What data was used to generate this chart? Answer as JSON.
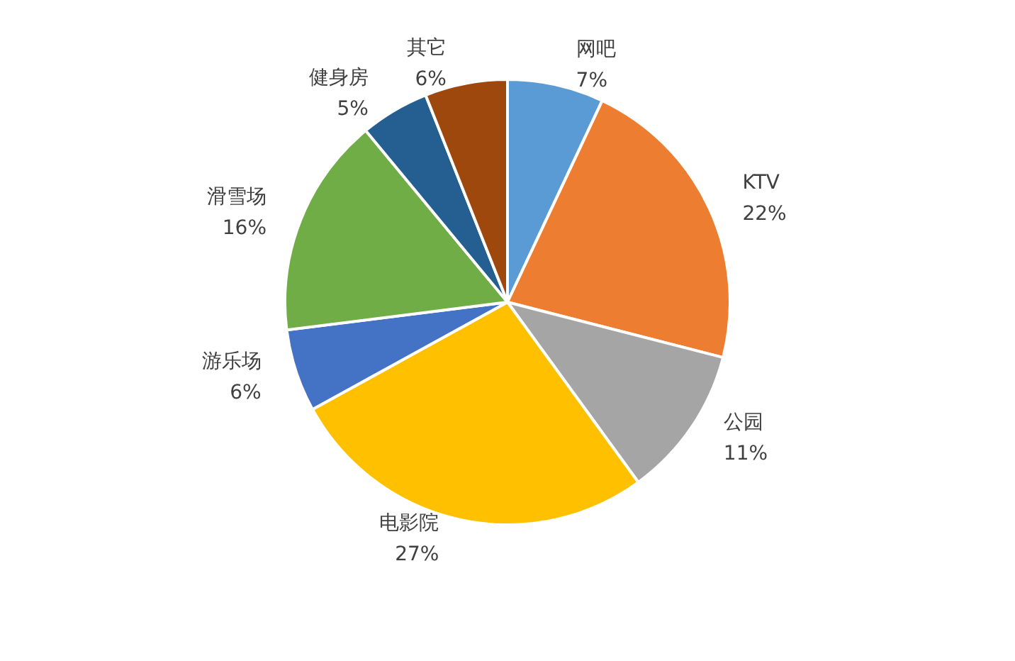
{
  "chart_data": {
    "type": "pie",
    "categories": [
      "网吧",
      "KTV",
      "公园",
      "电影院",
      "游乐场",
      "滑雪场",
      "健身房",
      "其它"
    ],
    "values": [
      7,
      22,
      11,
      27,
      6,
      16,
      5,
      6
    ],
    "value_labels": [
      "7%",
      "22%",
      "11%",
      "27%",
      "6%",
      "16%",
      "5%",
      "6%"
    ],
    "colors": [
      "#5b9bd5",
      "#ed7d31",
      "#a5a5a5",
      "#ffc000",
      "#4472c4",
      "#70ad47",
      "#255e91",
      "#9e480e"
    ],
    "legend": false
  }
}
